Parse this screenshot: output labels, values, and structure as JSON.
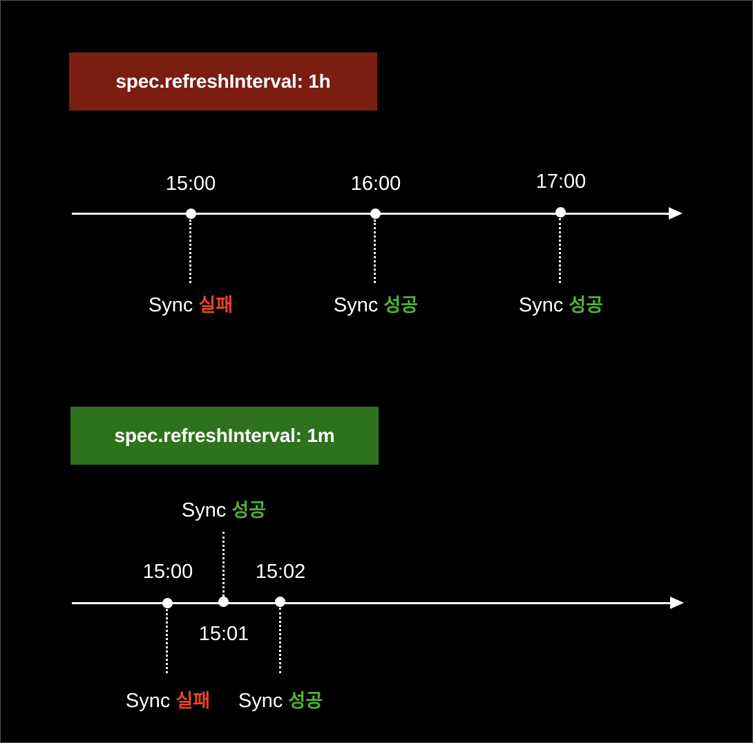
{
  "panel1": {
    "banner": "spec.refreshInterval: 1h",
    "banner_color": "#7b1e12",
    "times": [
      "15:00",
      "16:00",
      "17:00"
    ],
    "sync_word": "Sync",
    "results": [
      "실패",
      "성공",
      "성공"
    ]
  },
  "panel2": {
    "banner": "spec.refreshInterval: 1m",
    "banner_color": "#2f721e",
    "times": [
      "15:00",
      "15:01",
      "15:02"
    ],
    "sync_word": "Sync",
    "results": [
      "실패",
      "성공",
      "성공"
    ]
  },
  "colors": {
    "fail": "#e8432c",
    "success": "#4fb135",
    "background": "#000000",
    "line": "#ffffff"
  }
}
